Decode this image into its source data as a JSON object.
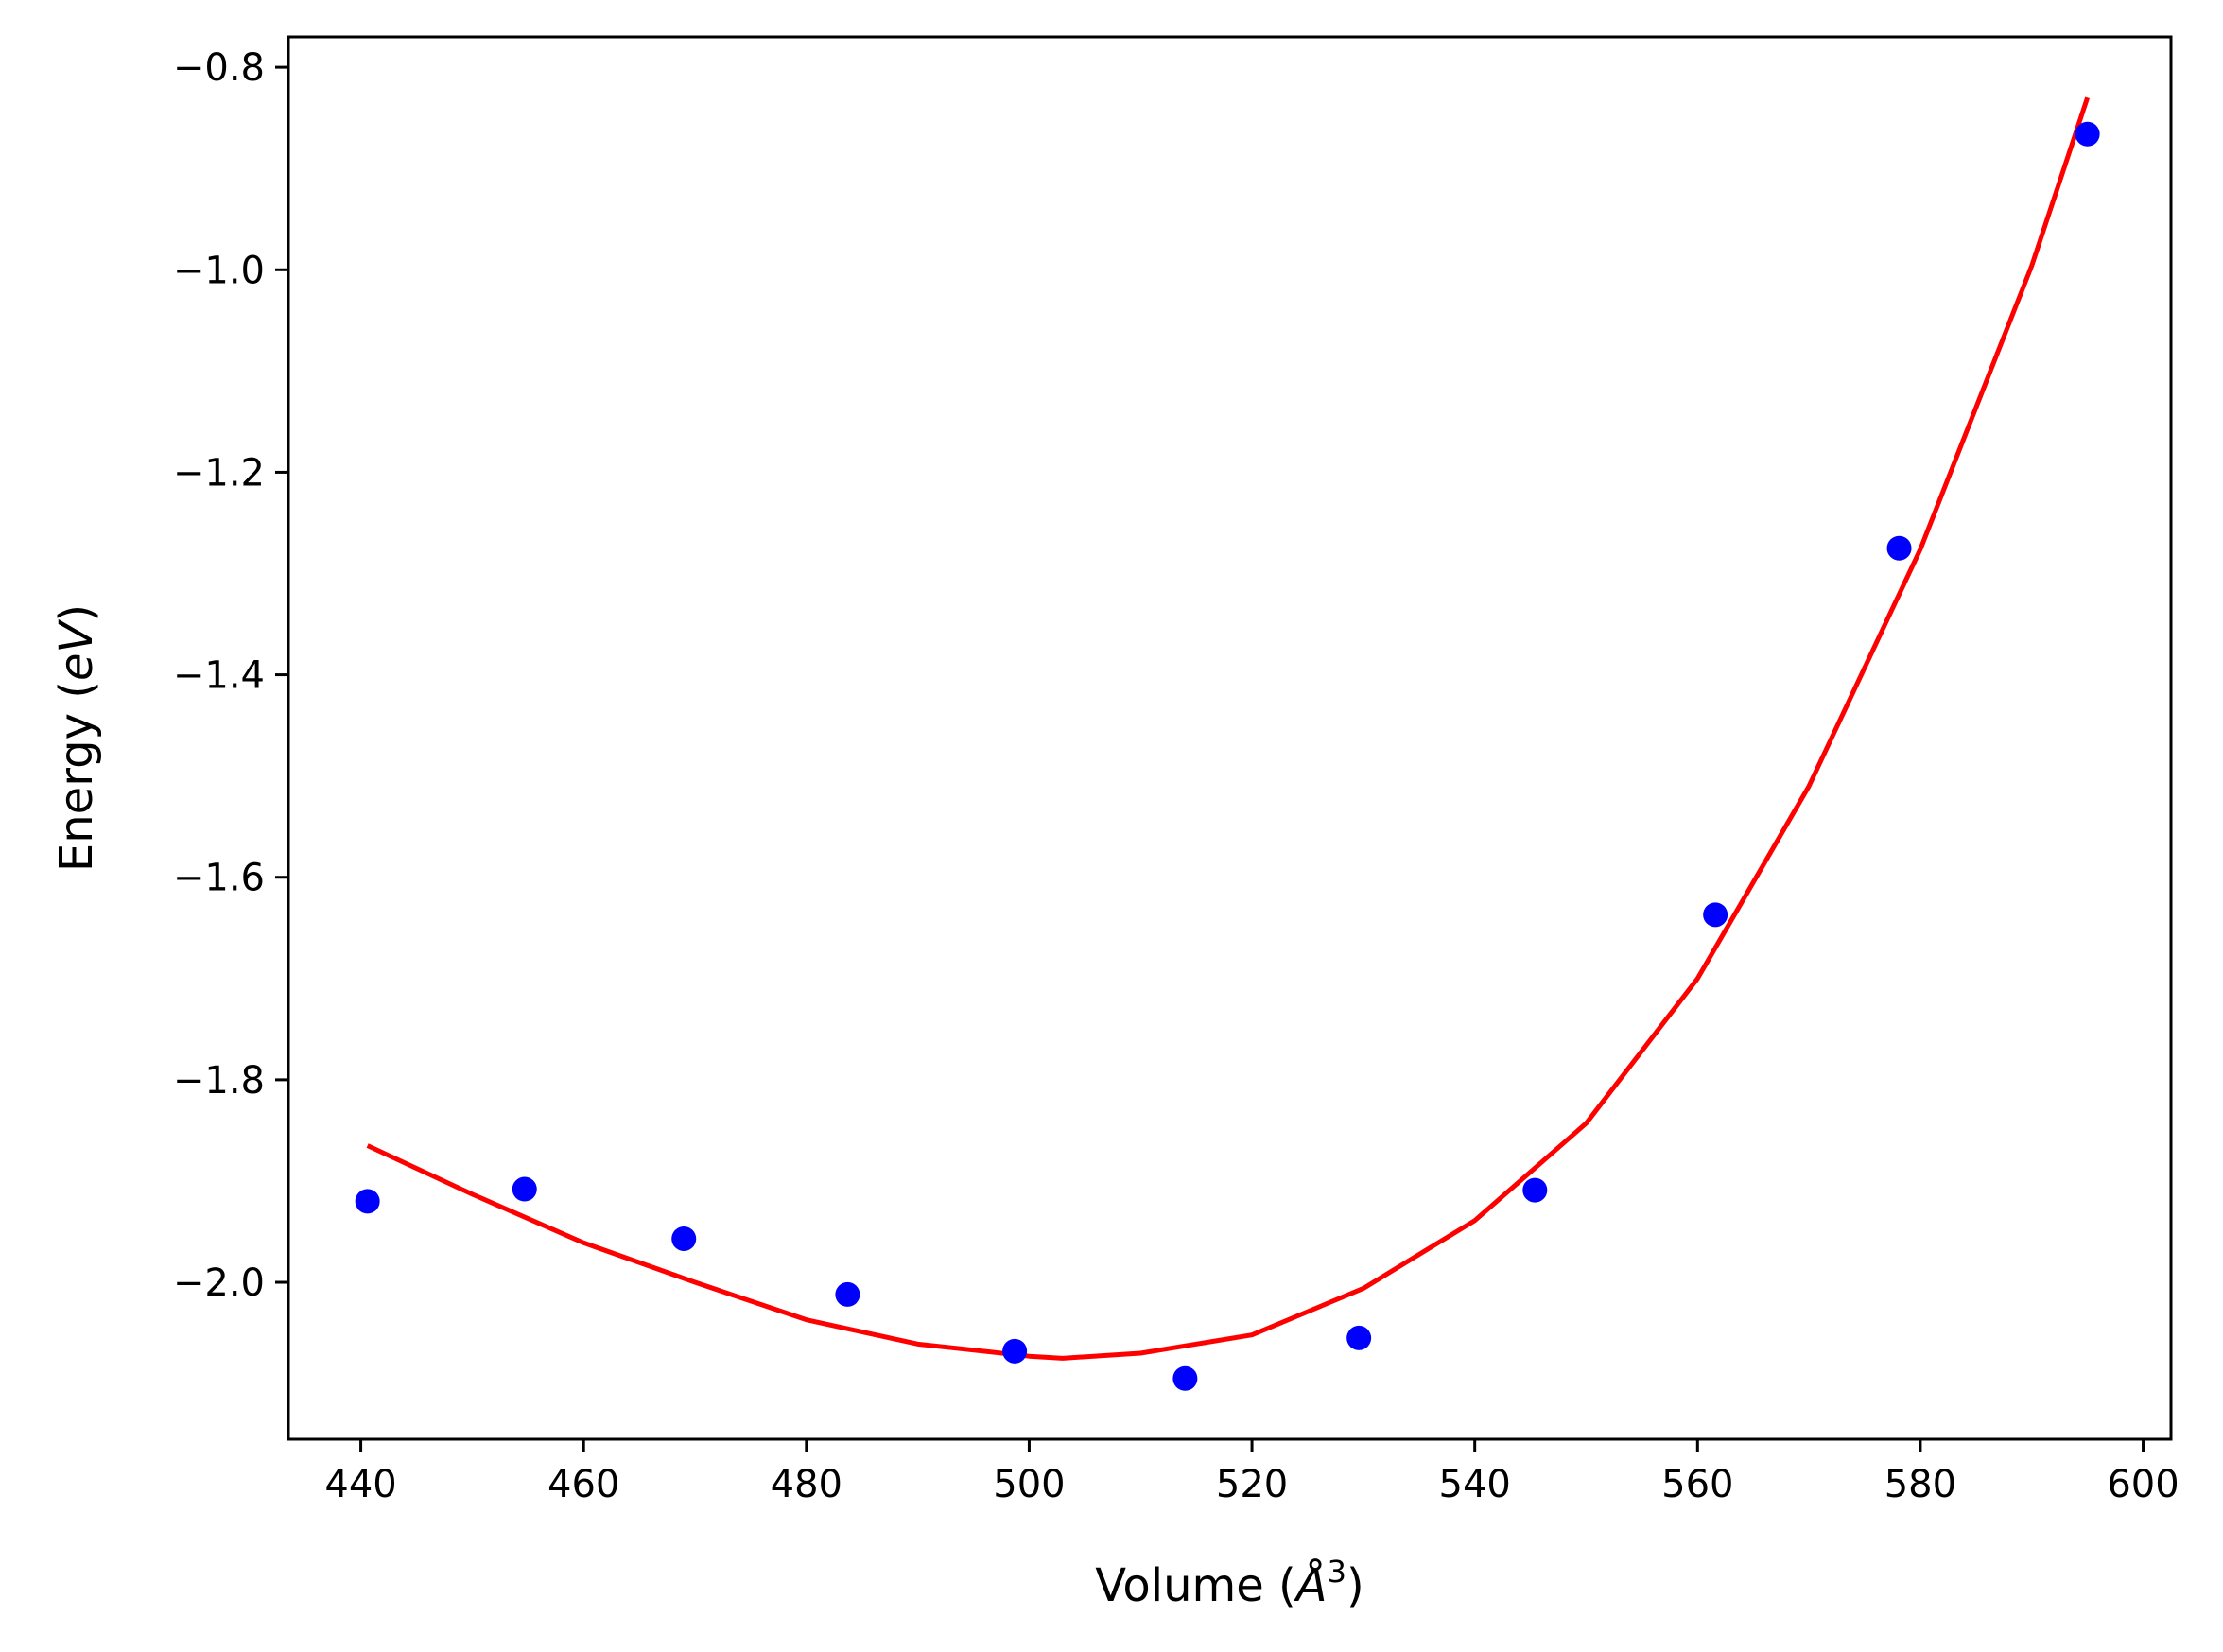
{
  "chart_data": {
    "type": "scatter",
    "title": "",
    "xlabel": "Volume (",
    "xlabel_unit": "Å",
    "xlabel_exp": "3",
    "xlabel_close": ")",
    "ylabel": "Energy (",
    "ylabel_unit": "eV",
    "ylabel_close": ")",
    "xlim": [
      433.5,
      602.5
    ],
    "ylim": [
      -2.155,
      -0.77
    ],
    "xticks": [
      440,
      460,
      480,
      500,
      520,
      540,
      560,
      580,
      600
    ],
    "yticks": [
      -0.8,
      -1.0,
      -1.2,
      -1.4,
      -1.6,
      -1.8,
      -2.0
    ],
    "xtick_labels": [
      "440",
      "460",
      "480",
      "500",
      "520",
      "540",
      "560",
      "580",
      "600"
    ],
    "ytick_labels": [
      "−0.8",
      "−1.0",
      "−1.2",
      "−1.4",
      "−1.6",
      "−1.8",
      "−2.0"
    ],
    "grid": false,
    "legend": "none",
    "series": [
      {
        "kind": "points",
        "color": "#0000ff",
        "x": [
          440.6,
          454.7,
          469.0,
          483.7,
          498.7,
          514.0,
          529.6,
          545.4,
          561.6,
          578.1,
          595.0
        ],
        "y": [
          -1.92,
          -1.908,
          -1.957,
          -2.012,
          -2.068,
          -2.095,
          -2.055,
          -1.909,
          -1.637,
          -1.275,
          -0.866
        ]
      },
      {
        "kind": "fit-line",
        "color": "#ff0000",
        "x": [
          440.6,
          450.0,
          460.0,
          470.0,
          480.0,
          490.0,
          500.0,
          503.0,
          510.0,
          520.0,
          530.0,
          540.0,
          550.0,
          560.0,
          570.0,
          580.0,
          590.0,
          595.0
        ],
        "y": [
          -1.865,
          -1.913,
          -1.961,
          -2.0,
          -2.037,
          -2.061,
          -2.073,
          -2.075,
          -2.07,
          -2.052,
          -2.006,
          -1.939,
          -1.843,
          -1.7,
          -1.51,
          -1.276,
          -0.996,
          -0.83
        ]
      }
    ]
  }
}
